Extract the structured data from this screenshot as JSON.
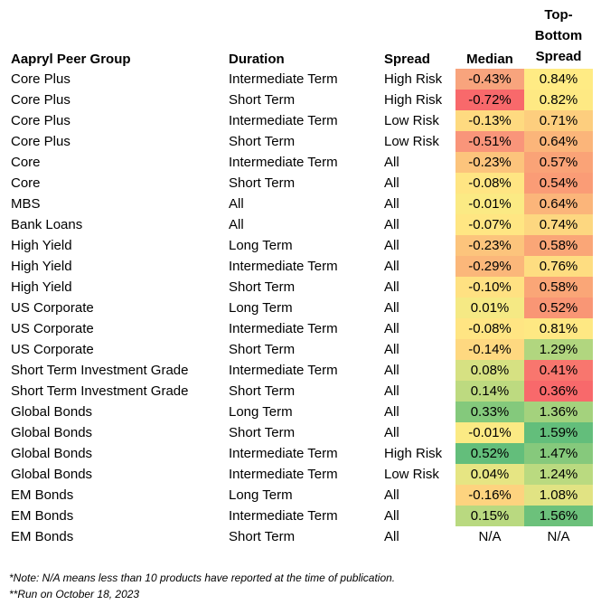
{
  "table": {
    "headers": {
      "group": "Aapryl Peer Group",
      "duration": "Duration",
      "spread": "Spread",
      "median": "Median",
      "tbs_lines": [
        "Top-",
        "Bottom",
        "Spread"
      ]
    },
    "rows": [
      {
        "group": "Core Plus",
        "duration": "Intermediate Term",
        "spread": "High Risk",
        "median": "-0.43%",
        "median_color": "#F8A47D",
        "tbs": "0.84%",
        "tbs_color": "#FFEB84"
      },
      {
        "group": "Core Plus",
        "duration": "Short Term",
        "spread": "High Risk",
        "median": "-0.72%",
        "median_color": "#F8696B",
        "tbs": "0.82%",
        "tbs_color": "#FEE983"
      },
      {
        "group": "Core Plus",
        "duration": "Intermediate Term",
        "spread": "Low Risk",
        "median": "-0.13%",
        "median_color": "#FEDA80",
        "tbs": "0.71%",
        "tbs_color": "#FDCE7E"
      },
      {
        "group": "Core Plus",
        "duration": "Short Term",
        "spread": "Low Risk",
        "median": "-0.51%",
        "median_color": "#F9957A",
        "tbs": "0.64%",
        "tbs_color": "#FBB57A"
      },
      {
        "group": "Core",
        "duration": "Intermediate Term",
        "spread": "All",
        "median": "-0.23%",
        "median_color": "#FCC47C",
        "tbs": "0.57%",
        "tbs_color": "#FAA377"
      },
      {
        "group": "Core",
        "duration": "Short Term",
        "spread": "All",
        "median": "-0.08%",
        "median_color": "#FFE583",
        "tbs": "0.54%",
        "tbs_color": "#FA9C76"
      },
      {
        "group": "MBS",
        "duration": "All",
        "spread": "All",
        "median": "-0.01%",
        "median_color": "#FBEA84",
        "tbs": "0.64%",
        "tbs_color": "#FBB57A"
      },
      {
        "group": "Bank Loans",
        "duration": "All",
        "spread": "All",
        "median": "-0.07%",
        "median_color": "#FFE683",
        "tbs": "0.74%",
        "tbs_color": "#FDD780"
      },
      {
        "group": "High Yield",
        "duration": "Long Term",
        "spread": "All",
        "median": "-0.23%",
        "median_color": "#FCC47C",
        "tbs": "0.58%",
        "tbs_color": "#FAA677"
      },
      {
        "group": "High Yield",
        "duration": "Intermediate Term",
        "spread": "All",
        "median": "-0.29%",
        "median_color": "#FBB77A",
        "tbs": "0.76%",
        "tbs_color": "#FEDD81"
      },
      {
        "group": "High Yield",
        "duration": "Short Term",
        "spread": "All",
        "median": "-0.10%",
        "median_color": "#FFE182",
        "tbs": "0.58%",
        "tbs_color": "#FAA677"
      },
      {
        "group": "US Corporate",
        "duration": "Long Term",
        "spread": "All",
        "median": "0.01%",
        "median_color": "#F5E984",
        "tbs": "0.52%",
        "tbs_color": "#F99675"
      },
      {
        "group": "US Corporate",
        "duration": "Intermediate Term",
        "spread": "All",
        "median": "-0.08%",
        "median_color": "#FFE583",
        "tbs": "0.81%",
        "tbs_color": "#FEE883"
      },
      {
        "group": "US Corporate",
        "duration": "Short Term",
        "spread": "All",
        "median": "-0.14%",
        "median_color": "#FED880",
        "tbs": "1.29%",
        "tbs_color": "#B1D67F"
      },
      {
        "group": "Short Term Investment Grade",
        "duration": "Intermediate Term",
        "spread": "All",
        "median": "0.08%",
        "median_color": "#D6E182",
        "tbs": "0.41%",
        "tbs_color": "#F8766E"
      },
      {
        "group": "Short Term Investment Grade",
        "duration": "Short Term",
        "spread": "All",
        "median": "0.14%",
        "median_color": "#BDDA80",
        "tbs": "0.36%",
        "tbs_color": "#F8696B"
      },
      {
        "group": "Global Bonds",
        "duration": "Long Term",
        "spread": "All",
        "median": "0.33%",
        "median_color": "#84C97C",
        "tbs": "1.36%",
        "tbs_color": "#A4D27D"
      },
      {
        "group": "Global Bonds",
        "duration": "Short Term",
        "spread": "All",
        "median": "-0.01%",
        "median_color": "#FBEA84",
        "tbs": "1.59%",
        "tbs_color": "#63BE7B"
      },
      {
        "group": "Global Bonds",
        "duration": "Intermediate Term",
        "spread": "High Risk",
        "median": "0.52%",
        "median_color": "#63BE7B",
        "tbs": "1.47%",
        "tbs_color": "#86C97C"
      },
      {
        "group": "Global Bonds",
        "duration": "Intermediate Term",
        "spread": "Low Risk",
        "median": "0.04%",
        "median_color": "#E6E583",
        "tbs": "1.24%",
        "tbs_color": "#BADA80"
      },
      {
        "group": "EM Bonds",
        "duration": "Long Term",
        "spread": "All",
        "median": "-0.16%",
        "median_color": "#FDD37F",
        "tbs": "1.08%",
        "tbs_color": "#E1E383"
      },
      {
        "group": "EM Bonds",
        "duration": "Intermediate Term",
        "spread": "All",
        "median": "0.15%",
        "median_color": "#B9D980",
        "tbs": "1.56%",
        "tbs_color": "#6CC17B"
      },
      {
        "group": "EM Bonds",
        "duration": "Short Term",
        "spread": "All",
        "median": "N/A",
        "median_color": "#FFFFFF",
        "tbs": "N/A",
        "tbs_color": "#FFFFFF"
      }
    ]
  },
  "notes": [
    "*Note: N/A means less than 10 products have reported at the time of publication.",
    "**Run on October 18, 2023"
  ]
}
